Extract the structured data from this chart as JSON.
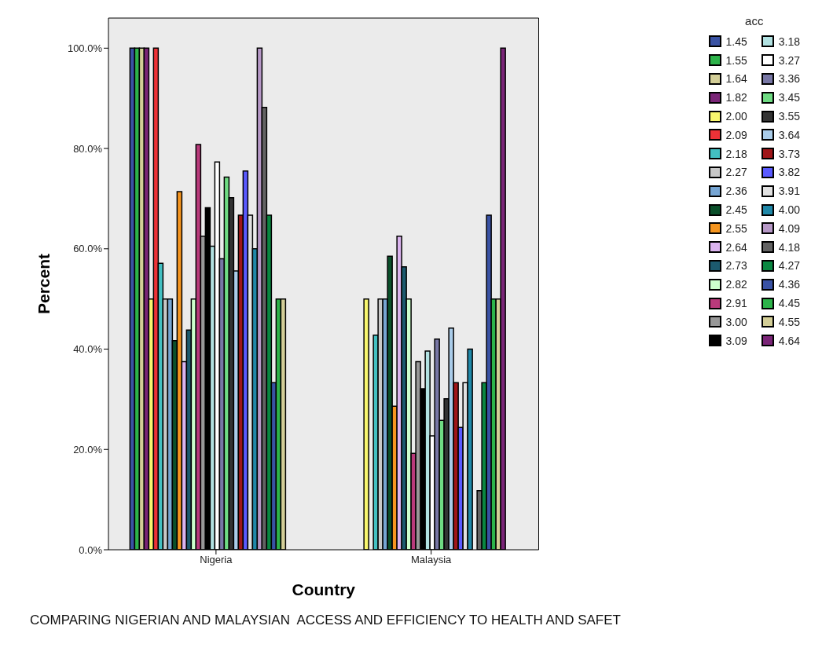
{
  "chart_data": {
    "type": "bar",
    "xlabel": "Country",
    "ylabel": "Percent",
    "legend_title": "acc",
    "legend": "right",
    "categories": [
      "Nigeria",
      "Malaysia"
    ],
    "ylim": [
      0,
      106
    ],
    "yticks": [
      {
        "value": 0,
        "label": "0.0%"
      },
      {
        "value": 20,
        "label": "20.0%"
      },
      {
        "value": 40,
        "label": "40.0%"
      },
      {
        "value": 60,
        "label": "60.0%"
      },
      {
        "value": 80,
        "label": "80.0%"
      },
      {
        "value": 100,
        "label": "100.0%"
      }
    ],
    "annotations": [
      "COMPARING NIGERIAN AND MALAYSIAN  ACCESS AND EFFICIENCY TO HEALTH AND SAFET"
    ],
    "series": [
      {
        "name": "1.45",
        "color": "#3a53a4",
        "values": [
          100,
          null
        ]
      },
      {
        "name": "1.55",
        "color": "#2db34a",
        "values": [
          100,
          null
        ]
      },
      {
        "name": "1.64",
        "color": "#d3ce97",
        "values": [
          100,
          null
        ]
      },
      {
        "name": "1.82",
        "color": "#7a2577",
        "values": [
          100,
          null
        ]
      },
      {
        "name": "2.00",
        "color": "#f8f66e",
        "values": [
          50,
          50
        ]
      },
      {
        "name": "2.09",
        "color": "#ed3237",
        "values": [
          100,
          null
        ]
      },
      {
        "name": "2.18",
        "color": "#43bfc1",
        "values": [
          57.1,
          42.8
        ]
      },
      {
        "name": "2.27",
        "color": "#c8c8c8",
        "values": [
          50,
          50
        ]
      },
      {
        "name": "2.36",
        "color": "#76a5d3",
        "values": [
          50,
          50
        ]
      },
      {
        "name": "2.45",
        "color": "#0a4f2a",
        "values": [
          41.7,
          58.5
        ]
      },
      {
        "name": "2.55",
        "color": "#f5951f",
        "values": [
          71.4,
          28.6
        ]
      },
      {
        "name": "2.64",
        "color": "#dbb4ef",
        "values": [
          37.5,
          62.5
        ]
      },
      {
        "name": "2.73",
        "color": "#1c5a6e",
        "values": [
          43.8,
          56.4
        ]
      },
      {
        "name": "2.82",
        "color": "#ccffcc",
        "values": [
          50,
          50
        ]
      },
      {
        "name": "2.91",
        "color": "#b93a7b",
        "values": [
          80.8,
          19.2
        ]
      },
      {
        "name": "3.00",
        "color": "#989898",
        "values": [
          62.5,
          37.5
        ]
      },
      {
        "name": "3.09",
        "color": "#000000",
        "values": [
          68.2,
          32.1
        ]
      },
      {
        "name": "3.18",
        "color": "#b2e2e2",
        "values": [
          60.5,
          39.6
        ]
      },
      {
        "name": "3.27",
        "color": "#ffffff",
        "values": [
          77.3,
          22.7
        ]
      },
      {
        "name": "3.36",
        "color": "#7877a5",
        "values": [
          58,
          42
        ]
      },
      {
        "name": "3.45",
        "color": "#6fdb83",
        "values": [
          74.3,
          25.8
        ]
      },
      {
        "name": "3.55",
        "color": "#333333",
        "values": [
          70.2,
          30.1
        ]
      },
      {
        "name": "3.64",
        "color": "#aacce9",
        "values": [
          55.6,
          44.2
        ]
      },
      {
        "name": "3.73",
        "color": "#9f1619",
        "values": [
          66.7,
          33.3
        ]
      },
      {
        "name": "3.82",
        "color": "#5a5aff",
        "values": [
          75.5,
          24.4
        ]
      },
      {
        "name": "3.91",
        "color": "#e1e1e1",
        "values": [
          66.7,
          33.3
        ]
      },
      {
        "name": "4.00",
        "color": "#2088a8",
        "values": [
          60,
          40
        ]
      },
      {
        "name": "4.09",
        "color": "#b698c6",
        "values": [
          100,
          null
        ]
      },
      {
        "name": "4.18",
        "color": "#636363",
        "values": [
          88.2,
          11.8
        ]
      },
      {
        "name": "4.27",
        "color": "#0a8741",
        "values": [
          66.7,
          33.3
        ]
      },
      {
        "name": "4.36",
        "color": "#3952a4",
        "values": [
          33.3,
          66.7
        ]
      },
      {
        "name": "4.45",
        "color": "#2db34a",
        "values": [
          50,
          50
        ]
      },
      {
        "name": "4.55",
        "color": "#d3ce97",
        "values": [
          50,
          50
        ]
      },
      {
        "name": "4.64",
        "color": "#7a2577",
        "values": [
          null,
          100
        ]
      }
    ]
  }
}
